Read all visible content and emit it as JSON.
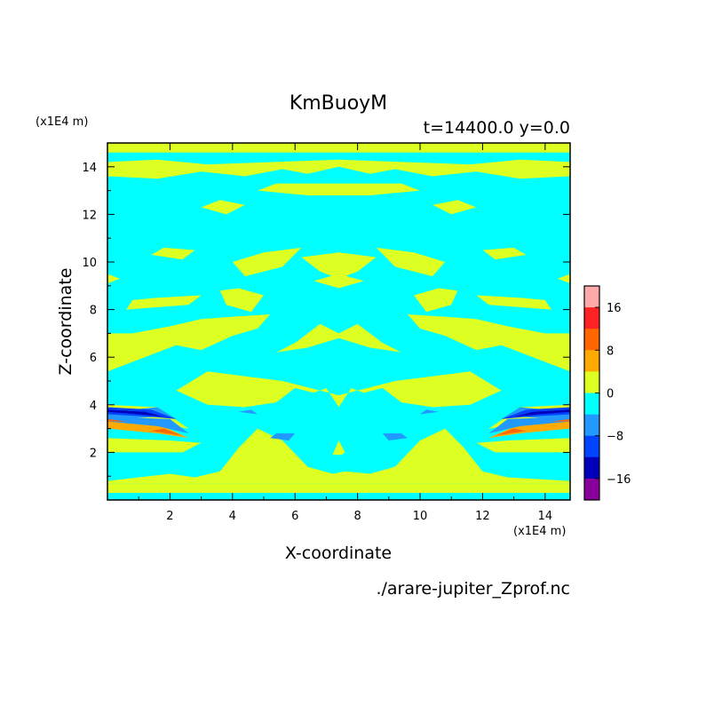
{
  "chart_data": {
    "type": "heatmap",
    "title": "KmBuoyM",
    "subtitle": "t=14400.0 y=0.0",
    "xlabel": "X-coordinate",
    "ylabel": "Z-coordinate",
    "x_unit": "(x1E4 m)",
    "y_unit": "(x1E4 m)",
    "source": "./arare-jupiter_Zprof.nc",
    "xlim": [
      0,
      14.8
    ],
    "ylim": [
      0,
      15
    ],
    "xticks": [
      2,
      4,
      6,
      8,
      10,
      12,
      14
    ],
    "yticks": [
      2,
      4,
      6,
      8,
      10,
      12,
      14
    ],
    "colorbar": {
      "ticks": [
        16,
        8,
        0,
        -8,
        -16
      ],
      "levels": [
        {
          "color": "#ffaaaa"
        },
        {
          "color": "#ff2222"
        },
        {
          "color": "#ff6600"
        },
        {
          "color": "#ffaa00"
        },
        {
          "color": "#ddff22"
        },
        {
          "color": "#00ffff"
        },
        {
          "color": "#2299ff"
        },
        {
          "color": "#0044ff"
        },
        {
          "color": "#0000bb"
        },
        {
          "color": "#880099"
        }
      ]
    },
    "background_level_color": "#00ffff",
    "positive_band_color": "#ddff22"
  }
}
